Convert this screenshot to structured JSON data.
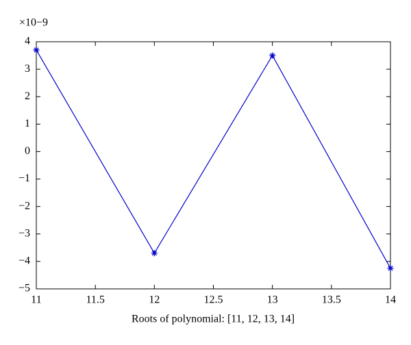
{
  "chart_data": {
    "type": "line",
    "x_label": "Roots of polynomial: [11, 12, 13, 14]",
    "y_multiplier": "×10−9",
    "x": [
      11,
      12,
      13,
      14
    ],
    "series": [
      {
        "color": "#0000cc",
        "marker": "asterisk",
        "values": [
          3.7,
          -3.7,
          3.5,
          -4.25
        ]
      }
    ],
    "xlim": [
      11,
      14
    ],
    "xticks": [
      11,
      11.5,
      12,
      12.5,
      13,
      13.5,
      14
    ],
    "ylim": [
      -5,
      4
    ],
    "yticks": [
      {
        "value": -5,
        "label": "−5"
      },
      {
        "value": -4,
        "label": "−4"
      },
      {
        "value": -3,
        "label": "−3"
      },
      {
        "value": -2,
        "label": "−2"
      },
      {
        "value": -1,
        "label": "−1"
      },
      0,
      1,
      2,
      3,
      4
    ],
    "grid": false
  }
}
